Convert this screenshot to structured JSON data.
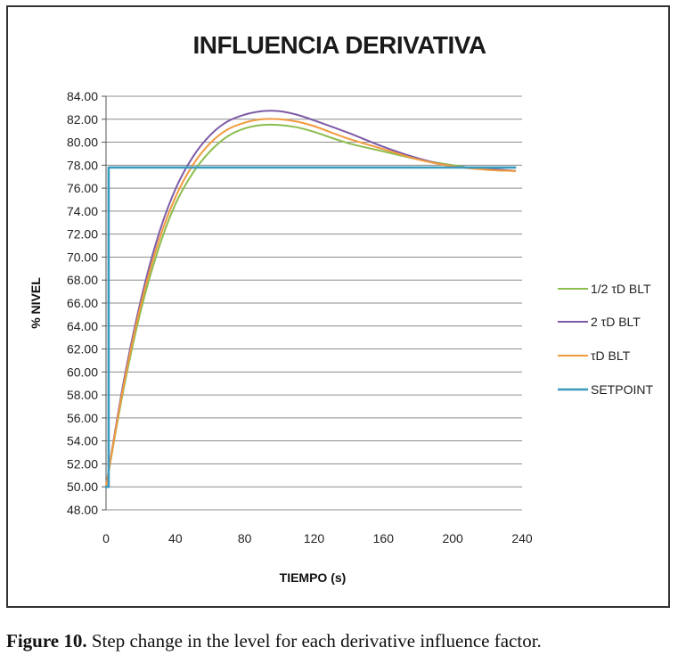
{
  "chart_data": {
    "type": "line",
    "title": "INFLUENCIA DERIVATIVA",
    "xlabel": "TIEMPO (s)",
    "ylabel": "% NIVEL",
    "xlim": [
      0,
      240
    ],
    "ylim": [
      48,
      84
    ],
    "x_ticks": [
      "0",
      "40",
      "80",
      "120",
      "160",
      "200",
      "240"
    ],
    "y_ticks": [
      "48.00",
      "50.00",
      "52.00",
      "54.00",
      "56.00",
      "58.00",
      "60.00",
      "62.00",
      "64.00",
      "66.00",
      "68.00",
      "70.00",
      "72.00",
      "74.00",
      "76.00",
      "78.00",
      "80.00",
      "82.00",
      "84.00"
    ],
    "grid": "horizontal",
    "legend_position": "right",
    "series": [
      {
        "name": "1/2 τD BLT",
        "color": "#8dbd4f",
        "x": [
          0,
          10,
          20,
          30,
          40,
          50,
          60,
          70,
          80,
          90,
          100,
          110,
          120,
          140,
          160,
          180,
          200,
          220,
          236
        ],
        "y": [
          50.0,
          58.4,
          65.3,
          70.6,
          74.6,
          77.3,
          79.2,
          80.5,
          81.2,
          81.5,
          81.5,
          81.3,
          80.9,
          79.9,
          79.2,
          78.5,
          78.0,
          77.6,
          77.5
        ]
      },
      {
        "name": "2 τD BLT",
        "color": "#7d5ba6",
        "x": [
          0,
          10,
          20,
          30,
          40,
          50,
          60,
          70,
          80,
          90,
          100,
          110,
          120,
          140,
          160,
          180,
          200,
          220,
          236
        ],
        "y": [
          50.0,
          59.0,
          66.2,
          71.8,
          75.9,
          78.7,
          80.6,
          81.8,
          82.4,
          82.7,
          82.7,
          82.4,
          81.9,
          80.8,
          79.6,
          78.6,
          77.9,
          77.7,
          77.5
        ]
      },
      {
        "name": "τD BLT",
        "color": "#f29a3f",
        "x": [
          0,
          10,
          20,
          30,
          40,
          50,
          60,
          70,
          80,
          90,
          100,
          110,
          120,
          140,
          160,
          180,
          200,
          220,
          236
        ],
        "y": [
          50.0,
          58.7,
          65.8,
          71.2,
          75.2,
          78.0,
          79.9,
          81.1,
          81.7,
          82.0,
          82.0,
          81.8,
          81.4,
          80.3,
          79.4,
          78.5,
          77.9,
          77.6,
          77.5
        ]
      },
      {
        "name": "SETPOINT",
        "color": "#3b9bbf",
        "x": [
          0,
          1.5,
          1.5,
          236
        ],
        "y": [
          50.0,
          50.0,
          77.8,
          77.8
        ]
      }
    ]
  },
  "caption": {
    "label": "Figure 10.",
    "text": " Step change in the level for each derivative influence factor."
  }
}
